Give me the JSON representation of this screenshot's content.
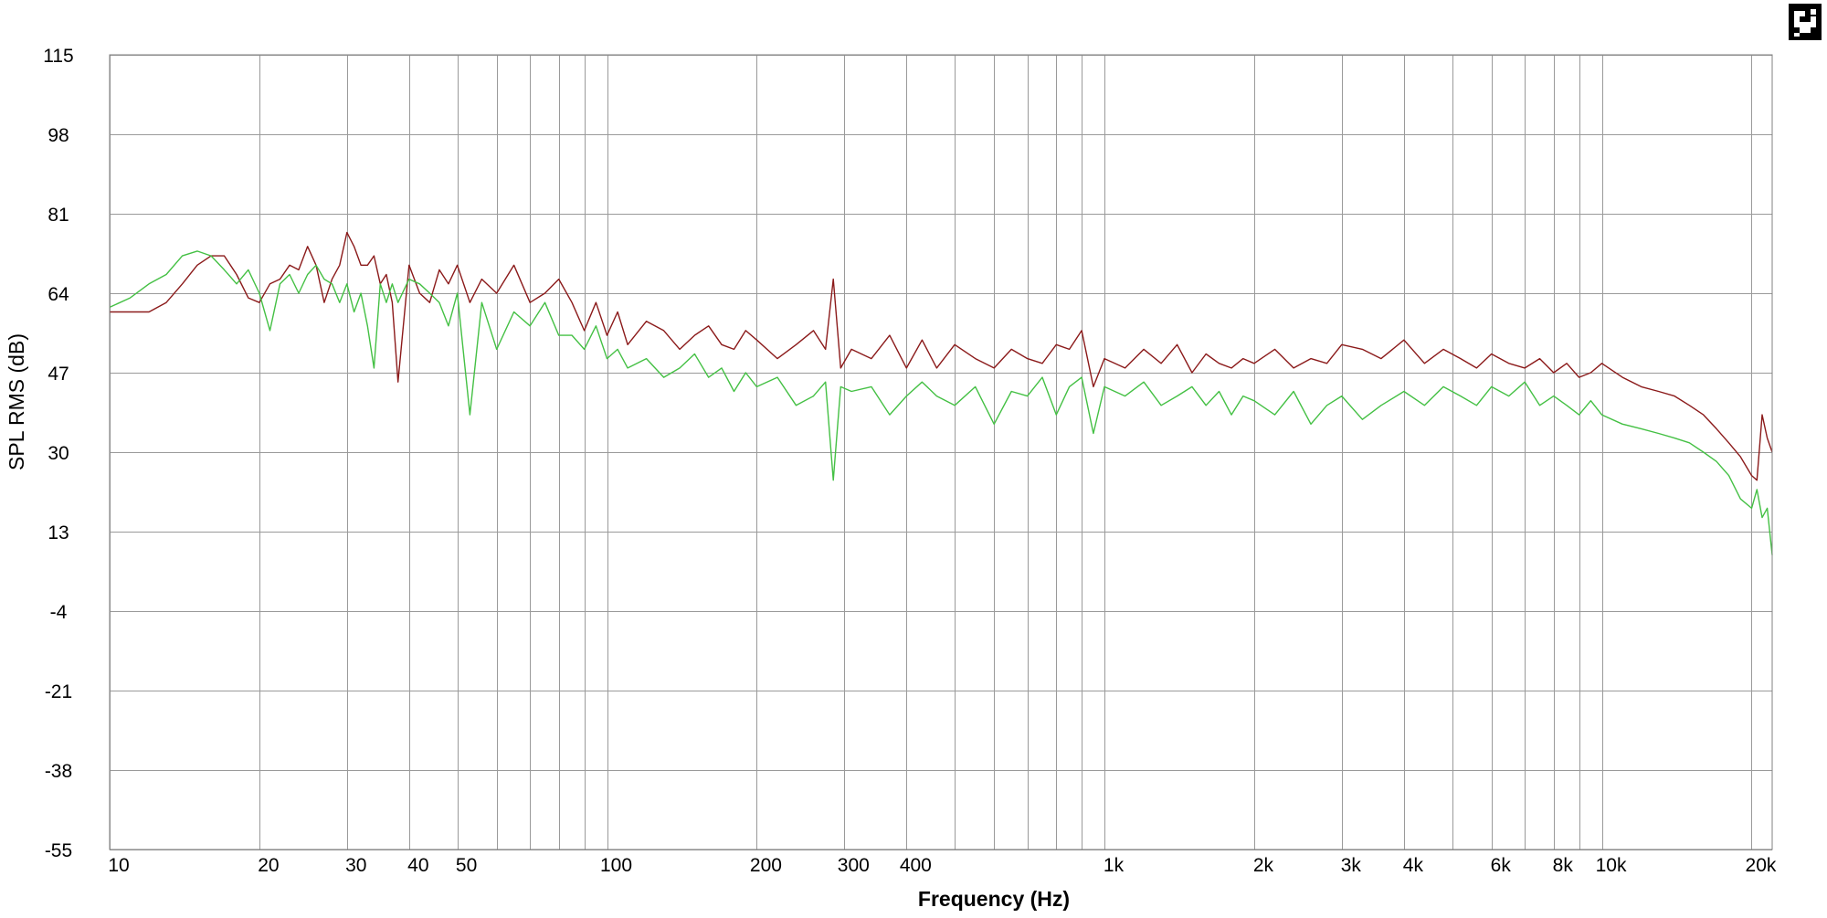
{
  "chart_data": {
    "type": "line",
    "title": "",
    "xlabel": "Frequency (Hz)",
    "ylabel": "SPL RMS (dB)",
    "x_scale": "log",
    "xlim": [
      10,
      22000
    ],
    "ylim": [
      -55,
      115
    ],
    "grid": true,
    "legend": "none",
    "y_ticks": [
      115,
      98,
      81,
      64,
      47,
      30,
      13,
      -4,
      -21,
      -38,
      -55
    ],
    "x_ticks": [
      {
        "value": 10,
        "label": "10"
      },
      {
        "value": 20,
        "label": "20"
      },
      {
        "value": 30,
        "label": "30"
      },
      {
        "value": 40,
        "label": "40"
      },
      {
        "value": 50,
        "label": "50"
      },
      {
        "value": 100,
        "label": "100"
      },
      {
        "value": 200,
        "label": "200"
      },
      {
        "value": 300,
        "label": "300"
      },
      {
        "value": 400,
        "label": "400"
      },
      {
        "value": 1000,
        "label": "1k"
      },
      {
        "value": 2000,
        "label": "2k"
      },
      {
        "value": 3000,
        "label": "3k"
      },
      {
        "value": 4000,
        "label": "4k"
      },
      {
        "value": 6000,
        "label": "6k"
      },
      {
        "value": 8000,
        "label": "8k"
      },
      {
        "value": 10000,
        "label": "10k"
      },
      {
        "value": 20000,
        "label": "20k"
      }
    ],
    "x_grid": [
      10,
      20,
      30,
      40,
      50,
      60,
      70,
      80,
      90,
      100,
      200,
      300,
      400,
      500,
      600,
      700,
      800,
      900,
      1000,
      2000,
      3000,
      4000,
      5000,
      6000,
      7000,
      8000,
      9000,
      10000,
      20000
    ],
    "series": [
      {
        "color": "#8b1a1a",
        "x": [
          10,
          11,
          12,
          13,
          14,
          15,
          16,
          17,
          18,
          19,
          20,
          21,
          22,
          23,
          24,
          25,
          26,
          27,
          28,
          29,
          30,
          31,
          32,
          33,
          34,
          35,
          36,
          37,
          38,
          40,
          42,
          44,
          46,
          48,
          50,
          53,
          56,
          60,
          65,
          70,
          75,
          80,
          85,
          90,
          95,
          100,
          105,
          110,
          120,
          130,
          140,
          150,
          160,
          170,
          180,
          190,
          200,
          220,
          240,
          260,
          275,
          285,
          295,
          310,
          340,
          370,
          400,
          430,
          460,
          500,
          550,
          600,
          650,
          700,
          750,
          800,
          850,
          900,
          950,
          1000,
          1100,
          1200,
          1300,
          1400,
          1500,
          1600,
          1700,
          1800,
          1900,
          2000,
          2200,
          2400,
          2600,
          2800,
          3000,
          3300,
          3600,
          4000,
          4400,
          4800,
          5200,
          5600,
          6000,
          6500,
          7000,
          7500,
          8000,
          8500,
          9000,
          9500,
          10000,
          11000,
          12000,
          13000,
          14000,
          15000,
          16000,
          17000,
          18000,
          19000,
          20000,
          20500,
          21000,
          21500,
          22000
        ],
        "y": [
          60,
          60,
          60,
          62,
          66,
          70,
          72,
          72,
          68,
          63,
          62,
          66,
          67,
          70,
          69,
          74,
          70,
          62,
          67,
          70,
          77,
          74,
          70,
          70,
          72,
          66,
          68,
          62,
          45,
          70,
          64,
          62,
          69,
          66,
          70,
          62,
          67,
          64,
          70,
          62,
          64,
          67,
          62,
          56,
          62,
          55,
          60,
          53,
          58,
          56,
          52,
          55,
          57,
          53,
          52,
          56,
          54,
          50,
          53,
          56,
          52,
          67,
          48,
          52,
          50,
          55,
          48,
          54,
          48,
          53,
          50,
          48,
          52,
          50,
          49,
          53,
          52,
          56,
          44,
          50,
          48,
          52,
          49,
          53,
          47,
          51,
          49,
          48,
          50,
          49,
          52,
          48,
          50,
          49,
          53,
          52,
          50,
          54,
          49,
          52,
          50,
          48,
          51,
          49,
          48,
          50,
          47,
          49,
          46,
          47,
          49,
          46,
          44,
          43,
          42,
          40,
          38,
          35,
          32,
          29,
          25,
          24,
          38,
          33,
          30
        ]
      },
      {
        "color": "#44c044",
        "x": [
          10,
          11,
          12,
          13,
          14,
          15,
          16,
          17,
          18,
          19,
          20,
          21,
          22,
          23,
          24,
          25,
          26,
          27,
          28,
          29,
          30,
          31,
          32,
          33,
          34,
          35,
          36,
          37,
          38,
          40,
          42,
          44,
          46,
          48,
          50,
          53,
          56,
          60,
          65,
          70,
          75,
          80,
          85,
          90,
          95,
          100,
          105,
          110,
          120,
          130,
          140,
          150,
          160,
          170,
          180,
          190,
          200,
          220,
          240,
          260,
          275,
          285,
          295,
          310,
          340,
          370,
          400,
          430,
          460,
          500,
          550,
          600,
          650,
          700,
          750,
          800,
          850,
          900,
          950,
          1000,
          1100,
          1200,
          1300,
          1400,
          1500,
          1600,
          1700,
          1800,
          1900,
          2000,
          2200,
          2400,
          2600,
          2800,
          3000,
          3300,
          3600,
          4000,
          4400,
          4800,
          5200,
          5600,
          6000,
          6500,
          7000,
          7500,
          8000,
          8500,
          9000,
          9500,
          10000,
          11000,
          12000,
          13000,
          14000,
          15000,
          16000,
          17000,
          18000,
          19000,
          20000,
          20500,
          21000,
          21500,
          22000
        ],
        "y": [
          61,
          63,
          66,
          68,
          72,
          73,
          72,
          69,
          66,
          69,
          64,
          56,
          66,
          68,
          64,
          68,
          70,
          67,
          66,
          62,
          66,
          60,
          64,
          57,
          48,
          66,
          62,
          66,
          62,
          67,
          66,
          64,
          62,
          57,
          64,
          38,
          62,
          52,
          60,
          57,
          62,
          55,
          55,
          52,
          57,
          50,
          52,
          48,
          50,
          46,
          48,
          51,
          46,
          48,
          43,
          47,
          44,
          46,
          40,
          42,
          45,
          24,
          44,
          43,
          44,
          38,
          42,
          45,
          42,
          40,
          44,
          36,
          43,
          42,
          46,
          38,
          44,
          46,
          34,
          44,
          42,
          45,
          40,
          42,
          44,
          40,
          43,
          38,
          42,
          41,
          38,
          43,
          36,
          40,
          42,
          37,
          40,
          43,
          40,
          44,
          42,
          40,
          44,
          42,
          45,
          40,
          42,
          40,
          38,
          41,
          38,
          36,
          35,
          34,
          33,
          32,
          30,
          28,
          25,
          20,
          18,
          22,
          16,
          18,
          8
        ]
      }
    ]
  },
  "badge": {
    "color": "#000000"
  }
}
